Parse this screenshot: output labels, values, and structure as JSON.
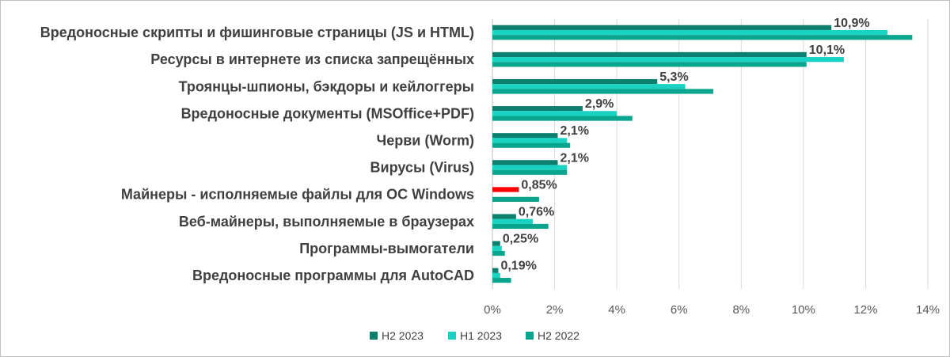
{
  "chart_data": {
    "type": "bar",
    "orientation": "horizontal",
    "title": "",
    "xlabel": "",
    "ylabel": "",
    "xlim": [
      0,
      14
    ],
    "x_tick_step": 2,
    "x_tick_suffix": "%",
    "grid": "vertical",
    "legend_position": "bottom",
    "categories": [
      "Вредоносные скрипты и фишинговые страницы (JS и HTML)",
      "Ресурсы в интернете из списка запрещённых",
      "Троянцы-шпионы, бэкдоры и кейлоггеры",
      "Вредоносные документы (MSOffice+PDF)",
      "Черви (Worm)",
      "Вирусы (Virus)",
      "Майнеры - исполняемые файлы для ОС Windows",
      "Веб-майнеры, выполняемые в браузерах",
      "Программы-вымогатели",
      "Вредоносные программы для AutoCAD"
    ],
    "series": [
      {
        "name": "H2 2023",
        "color": "#0d7f6e",
        "values": [
          10.9,
          10.1,
          5.3,
          2.9,
          2.1,
          2.1,
          0.85,
          0.76,
          0.25,
          0.19
        ],
        "labels": [
          "10,9%",
          "10,1%",
          "5,3%",
          "2,9%",
          "2,1%",
          "2,1%",
          "0,85%",
          "0,76%",
          "0,25%",
          "0,19%"
        ],
        "highlight_index": 6,
        "highlight_color": "#ff0000"
      },
      {
        "name": "H1 2023",
        "color": "#19d2c2",
        "values": [
          12.7,
          11.3,
          6.2,
          4.0,
          2.4,
          2.4,
          0.0,
          1.3,
          0.3,
          0.25
        ]
      },
      {
        "name": "H2 2022",
        "color": "#0aa58f",
        "values": [
          13.5,
          10.1,
          7.1,
          4.5,
          2.5,
          2.4,
          1.5,
          1.8,
          0.4,
          0.6
        ]
      }
    ]
  }
}
